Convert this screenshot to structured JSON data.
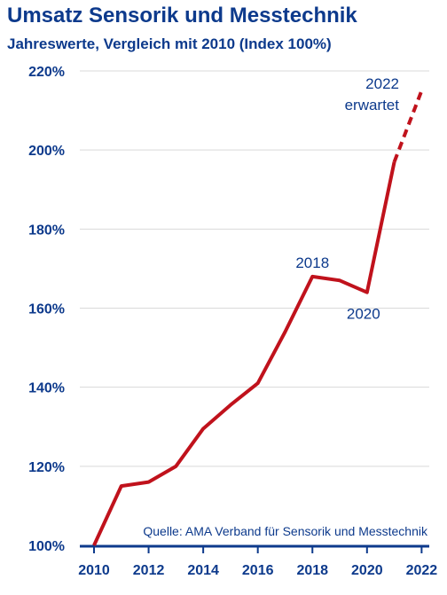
{
  "title": "Umsatz Sensorik und Messtechnik",
  "subtitle": "Jahreswerte, Vergleich mit 2010 (Index 100%)",
  "source": "Quelle: AMA Verband für Sensorik und Messtechnik",
  "colors": {
    "text": "#0d3a8c",
    "line": "#c0121c",
    "grid": "#d9d9d9"
  },
  "chart_data": {
    "type": "line",
    "title": "Umsatz Sensorik und Messtechnik",
    "subtitle": "Jahreswerte, Vergleich mit 2010 (Index 100%)",
    "xlabel": "",
    "ylabel": "",
    "x": [
      2010,
      2011,
      2012,
      2013,
      2014,
      2015,
      2016,
      2017,
      2018,
      2019,
      2020,
      2021,
      2022
    ],
    "xlim": [
      2010,
      2022.8
    ],
    "ylim": [
      100,
      220
    ],
    "y_unit": "%",
    "x_ticks": [
      "2010",
      "2012",
      "2014",
      "2016",
      "2018",
      "2020",
      "2022"
    ],
    "y_ticks": [
      "100%",
      "120%",
      "140%",
      "160%",
      "180%",
      "200%",
      "220%"
    ],
    "grid": "horizontal",
    "series": [
      {
        "values": [
          100,
          115,
          116,
          120,
          129.5,
          135.5,
          141,
          154,
          168,
          167,
          164,
          197,
          215
        ],
        "dashed_from_index": 11
      }
    ],
    "annotations": [
      {
        "text": "2018",
        "x": 2018
      },
      {
        "text": "2020",
        "x": 2020
      },
      {
        "text": "2022",
        "x": 2022
      },
      {
        "text": "erwartet",
        "x": 2022
      }
    ]
  }
}
